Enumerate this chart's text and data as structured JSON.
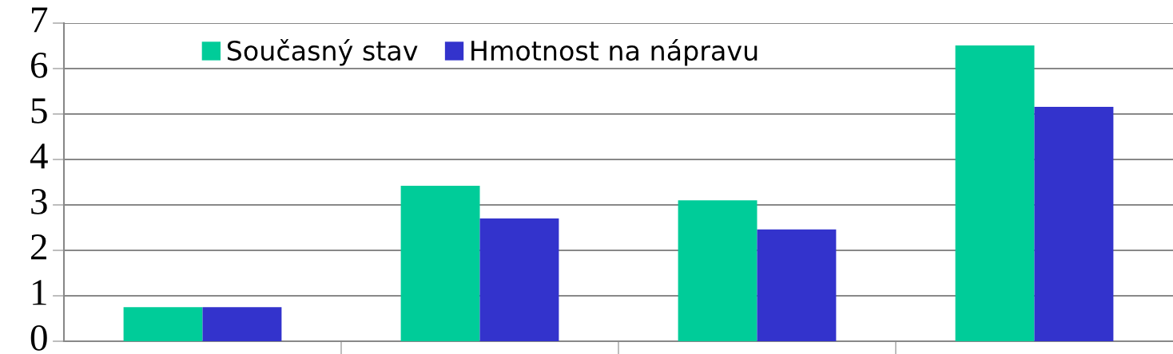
{
  "chart_data": {
    "type": "bar",
    "categories": [
      null,
      null,
      null,
      null
    ],
    "series": [
      {
        "name": "Současný stav",
        "color": "#00cc99",
        "values": [
          0.75,
          3.42,
          3.1,
          6.51
        ]
      },
      {
        "name": "Hmotnost na nápravu",
        "color": "#3333cc",
        "values": [
          0.75,
          2.7,
          2.46,
          5.16
        ]
      }
    ],
    "ylim": [
      0,
      7
    ],
    "yticks": [
      0,
      1,
      2,
      3,
      4,
      5,
      6,
      7
    ],
    "grid": "y",
    "legend": "top"
  }
}
